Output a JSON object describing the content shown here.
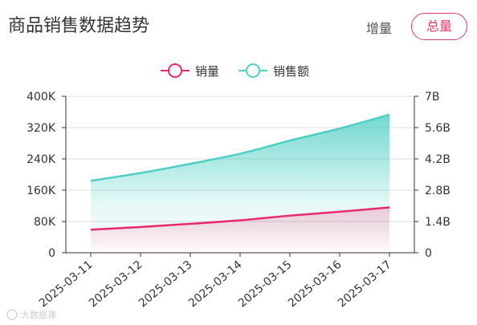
{
  "header": {
    "title": "商品销售数据趋势",
    "tabs": [
      {
        "label": "增量",
        "active": false
      },
      {
        "label": "总量",
        "active": true
      }
    ]
  },
  "watermark": "大数据课",
  "chart_data": {
    "type": "area",
    "title": "",
    "x": [
      "2025-03-11",
      "2025-03-12",
      "2025-03-13",
      "2025-03-14",
      "2025-03-15",
      "2025-03-16",
      "2025-03-17"
    ],
    "series": [
      {
        "name": "销量",
        "axis": "left",
        "color": "#e8286a",
        "values": [
          59000,
          66000,
          74000,
          83000,
          95000,
          105000,
          116000
        ]
      },
      {
        "name": "销售额",
        "axis": "right",
        "color": "#4ecfc4",
        "values": [
          3220000000,
          3570000000,
          3980000000,
          4430000000,
          5020000000,
          5560000000,
          6180000000
        ]
      }
    ],
    "y_left": {
      "min": 0,
      "max": 400000,
      "ticks": [
        "0",
        "80K",
        "160K",
        "240K",
        "320K",
        "400K"
      ]
    },
    "y_right": {
      "min": 0,
      "max": 7000000000,
      "ticks": [
        "0",
        "1.4B",
        "2.8B",
        "4.2B",
        "5.6B",
        "7B"
      ]
    },
    "legend_position": "top-center",
    "grid": true
  }
}
